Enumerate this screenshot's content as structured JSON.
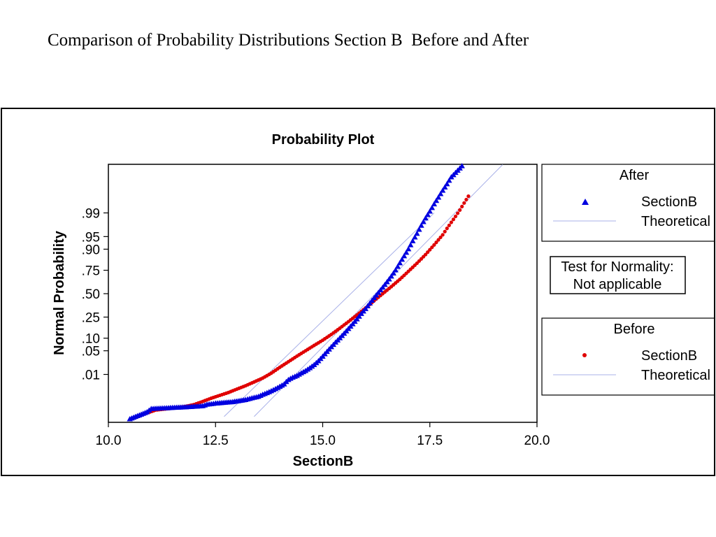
{
  "slide": {
    "title": "Comparison of Probability Distributions Section B  Before and After"
  },
  "legend_after": {
    "heading": "After",
    "series_label": "SectionB",
    "line_label": "Theoretical"
  },
  "legend_before": {
    "heading": "Before",
    "series_label": "SectionB",
    "line_label": "Theoretical"
  },
  "normality_box": {
    "line1": "Test for Normality:",
    "line2": "Not applicable"
  },
  "colors": {
    "after": "#0000e0",
    "before": "#e00000",
    "theoretical": "#a8b0e8"
  },
  "chart_data": {
    "type": "scatter",
    "title": "Probability Plot",
    "xlabel": "SectionB",
    "ylabel": "Normal Probability",
    "xlim": [
      10.0,
      20.0
    ],
    "x_ticks": [
      "10.0",
      "12.5",
      "15.0",
      "17.5",
      "20.0"
    ],
    "y_ticks": [
      ".99",
      ".95",
      ".90",
      ".75",
      ".50",
      ".25",
      ".10",
      ".05",
      ".01"
    ],
    "series": [
      {
        "name": "After SectionB",
        "marker": "triangle",
        "color": "#0000e0",
        "x": [
          10.5,
          10.9,
          11.0,
          11.9,
          12.2,
          12.3,
          12.5,
          12.9,
          13.2,
          13.35,
          13.5,
          13.6,
          13.7,
          13.8,
          13.9,
          14.0,
          14.1,
          14.15,
          14.2,
          14.3,
          14.4,
          14.5,
          14.6,
          14.7,
          14.8,
          14.9,
          15.0,
          15.1,
          15.2,
          15.3,
          15.4,
          15.5,
          15.6,
          15.7,
          15.8,
          15.9,
          16.0,
          16.1,
          16.2,
          16.3,
          16.4,
          16.5,
          16.6,
          16.7,
          16.8,
          16.9,
          17.0,
          17.1,
          17.2,
          17.3,
          17.4,
          17.5,
          17.6,
          17.7,
          17.8,
          17.9,
          18.0,
          18.1,
          18.25
        ],
        "y": [
          0.00015,
          0.00032,
          0.00045,
          0.00055,
          0.0006,
          0.0007,
          0.00078,
          0.0009,
          0.0011,
          0.0013,
          0.0015,
          0.0018,
          0.0021,
          0.0025,
          0.003,
          0.0037,
          0.0045,
          0.0055,
          0.0065,
          0.0078,
          0.009,
          0.011,
          0.013,
          0.016,
          0.02,
          0.026,
          0.035,
          0.047,
          0.062,
          0.08,
          0.1,
          0.125,
          0.155,
          0.19,
          0.23,
          0.28,
          0.33,
          0.39,
          0.45,
          0.51,
          0.57,
          0.63,
          0.69,
          0.75,
          0.81,
          0.86,
          0.9,
          0.935,
          0.958,
          0.975,
          0.985,
          0.991,
          0.995,
          0.9972,
          0.9985,
          0.9992,
          0.9996,
          0.99975,
          0.99988
        ]
      },
      {
        "name": "Before SectionB",
        "marker": "circle",
        "color": "#e00000",
        "x": [
          10.8,
          11.1,
          11.75,
          12.0,
          12.2,
          12.4,
          12.6,
          12.8,
          13.0,
          13.2,
          13.4,
          13.6,
          13.8,
          14.0,
          14.2,
          14.4,
          14.6,
          14.8,
          15.0,
          15.2,
          15.4,
          15.6,
          15.8,
          16.0,
          16.2,
          16.4,
          16.6,
          16.8,
          17.0,
          17.2,
          17.4,
          17.6,
          17.8,
          17.9,
          18.0,
          18.1,
          18.2,
          18.3,
          18.4
        ],
        "y": [
          0.00025,
          0.0004,
          0.00055,
          0.0007,
          0.00095,
          0.0013,
          0.0017,
          0.0022,
          0.003,
          0.004,
          0.0055,
          0.0075,
          0.011,
          0.017,
          0.025,
          0.036,
          0.05,
          0.068,
          0.09,
          0.12,
          0.16,
          0.21,
          0.27,
          0.34,
          0.42,
          0.5,
          0.58,
          0.66,
          0.74,
          0.81,
          0.87,
          0.92,
          0.955,
          0.97,
          0.98,
          0.987,
          0.992,
          0.9955,
          0.9975
        ]
      }
    ],
    "reference_lines": [
      {
        "name": "After Theoretical",
        "x": [
          13.4,
          19.2
        ],
        "y": [
          0.0002,
          0.9999
        ]
      },
      {
        "name": "Before Theoretical",
        "x": [
          12.7,
          17.6
        ],
        "y": [
          0.0002,
          0.99
        ]
      }
    ]
  }
}
